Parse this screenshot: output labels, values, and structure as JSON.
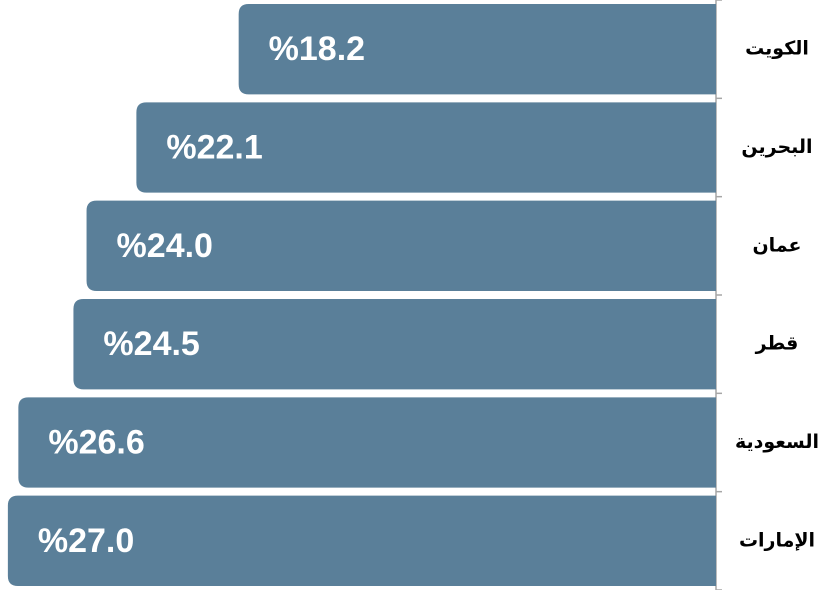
{
  "chart_data": {
    "type": "bar",
    "orientation": "horizontal",
    "categories": [
      "الكويت",
      "البحرين",
      "عمان",
      "قطر",
      "السعودية",
      "الإمارات"
    ],
    "values": [
      18.2,
      22.1,
      24.0,
      24.5,
      26.6,
      27.0
    ],
    "value_labels": [
      "%18.2",
      "%22.1",
      "%24.0",
      "%24.5",
      "%26.6",
      "%27.0"
    ],
    "color": "#5a7f99",
    "xlim": [
      0,
      27.3
    ]
  }
}
